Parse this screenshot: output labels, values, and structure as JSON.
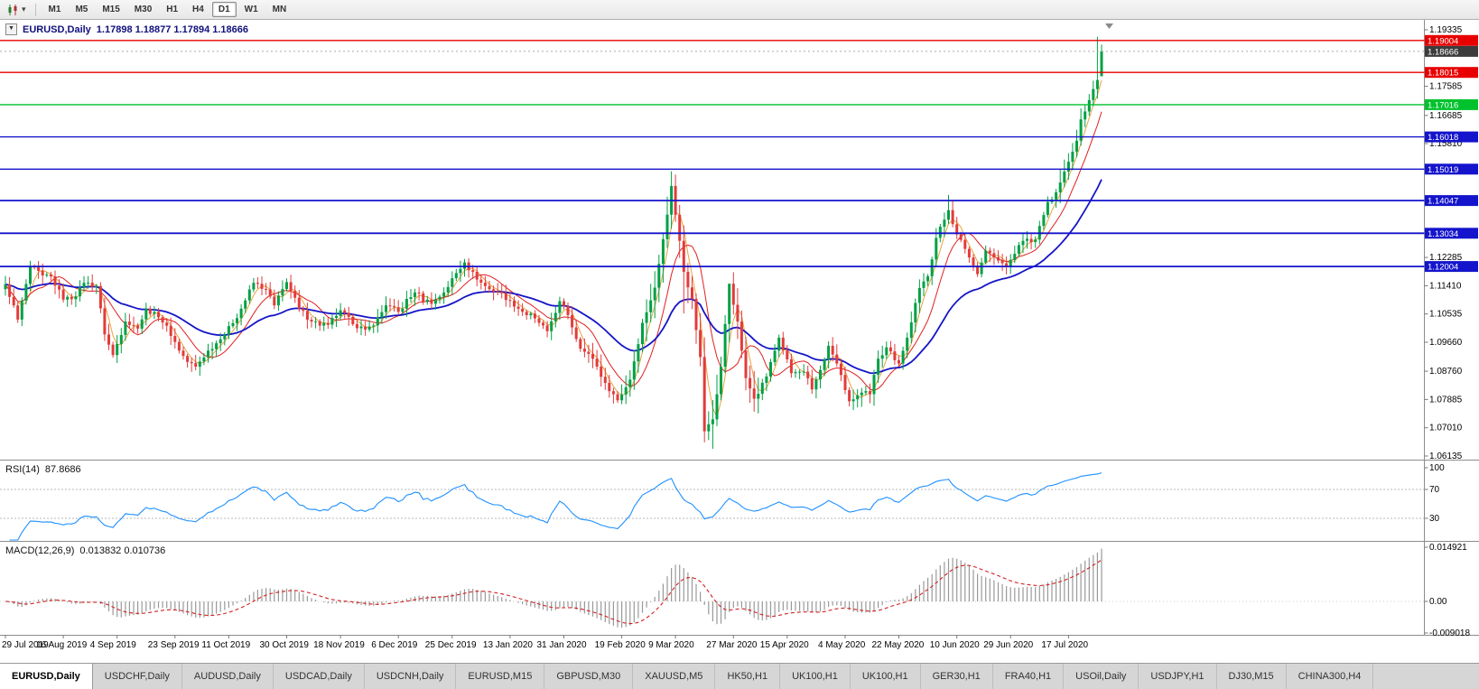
{
  "toolbar": {
    "timeframes": [
      {
        "label": "M1",
        "active": false
      },
      {
        "label": "M5",
        "active": false
      },
      {
        "label": "M15",
        "active": false
      },
      {
        "label": "M30",
        "active": false
      },
      {
        "label": "H1",
        "active": false
      },
      {
        "label": "H4",
        "active": false
      },
      {
        "label": "D1",
        "active": true
      },
      {
        "label": "W1",
        "active": false
      },
      {
        "label": "MN",
        "active": false
      }
    ]
  },
  "chart": {
    "title_symbol": "EURUSD,Daily",
    "ohlc_text": "1.17898 1.18877 1.17894 1.18666"
  },
  "indicators": {
    "rsi_label": "RSI(14)",
    "rsi_value": "87.8686",
    "macd_label": "MACD(12,26,9)",
    "macd_values": "0.013832 0.010736"
  },
  "chart_data": {
    "type": "candlestick",
    "symbol": "EURUSD",
    "timeframe": "Daily",
    "current_bar": {
      "open": 1.17898,
      "high": 1.18877,
      "low": 1.17894,
      "close": 1.18666
    },
    "bars": 266,
    "candle_up_color": "#00A045",
    "candle_down_color": "#E23B3B",
    "close_anchors": [
      [
        0,
        1.1145
      ],
      [
        2,
        1.108
      ],
      [
        3,
        1.1036
      ],
      [
        6,
        1.12
      ],
      [
        9,
        1.1173
      ],
      [
        11,
        1.117
      ],
      [
        14,
        1.1098
      ],
      [
        17,
        1.1108
      ],
      [
        19,
        1.115
      ],
      [
        22,
        1.114
      ],
      [
        24,
        1.099
      ],
      [
        26,
        1.0926
      ],
      [
        29,
        1.103
      ],
      [
        32,
        1.1008
      ],
      [
        34,
        1.107
      ],
      [
        37,
        1.1043
      ],
      [
        39,
        1.1017
      ],
      [
        42,
        1.094
      ],
      [
        44,
        1.0905
      ],
      [
        46,
        1.089
      ],
      [
        49,
        1.094
      ],
      [
        52,
        1.0975
      ],
      [
        55,
        1.1025
      ],
      [
        57,
        1.107
      ],
      [
        60,
        1.115
      ],
      [
        63,
        1.113
      ],
      [
        65,
        1.108
      ],
      [
        68,
        1.1152
      ],
      [
        71,
        1.107
      ],
      [
        74,
        1.103
      ],
      [
        78,
        1.102
      ],
      [
        81,
        1.1065
      ],
      [
        84,
        1.1022
      ],
      [
        87,
        1.1005
      ],
      [
        89,
        1.1018
      ],
      [
        92,
        1.108
      ],
      [
        95,
        1.106
      ],
      [
        99,
        1.112
      ],
      [
        103,
        1.1085
      ],
      [
        106,
        1.112
      ],
      [
        109,
        1.118
      ],
      [
        111,
        1.1213
      ],
      [
        114,
        1.116
      ],
      [
        117,
        1.113
      ],
      [
        119,
        1.1122
      ],
      [
        122,
        1.1095
      ],
      [
        125,
        1.106
      ],
      [
        129,
        1.1026
      ],
      [
        131,
        1.1
      ],
      [
        134,
        1.1093
      ],
      [
        136,
        1.105
      ],
      [
        139,
        1.0946
      ],
      [
        142,
        1.0915
      ],
      [
        145,
        1.084
      ],
      [
        148,
        1.0786
      ],
      [
        151,
        1.085
      ],
      [
        154,
        1.1026
      ],
      [
        157,
        1.1135
      ],
      [
        159,
        1.1285
      ],
      [
        161,
        1.145
      ],
      [
        163,
        1.128
      ],
      [
        164,
        1.1184
      ],
      [
        166,
        1.11
      ],
      [
        168,
        1.092
      ],
      [
        169,
        1.069
      ],
      [
        171,
        1.0727
      ],
      [
        173,
        1.089
      ],
      [
        175,
        1.1147
      ],
      [
        177,
        1.103
      ],
      [
        179,
        1.0855
      ],
      [
        181,
        1.0791
      ],
      [
        184,
        1.086
      ],
      [
        187,
        1.098
      ],
      [
        190,
        1.087
      ],
      [
        193,
        1.0875
      ],
      [
        195,
        1.082
      ],
      [
        197,
        1.088
      ],
      [
        199,
        1.0955
      ],
      [
        201,
        1.09
      ],
      [
        204,
        1.0783
      ],
      [
        207,
        1.081
      ],
      [
        209,
        1.0805
      ],
      [
        211,
        1.0915
      ],
      [
        213,
        1.095
      ],
      [
        216,
        1.09
      ],
      [
        218,
        1.098
      ],
      [
        221,
        1.1134
      ],
      [
        223,
        1.117
      ],
      [
        225,
        1.1289
      ],
      [
        228,
        1.1375
      ],
      [
        230,
        1.13
      ],
      [
        232,
        1.1255
      ],
      [
        235,
        1.1177
      ],
      [
        237,
        1.125
      ],
      [
        240,
        1.1219
      ],
      [
        242,
        1.12
      ],
      [
        244,
        1.124
      ],
      [
        246,
        1.128
      ],
      [
        249,
        1.1284
      ],
      [
        252,
        1.14
      ],
      [
        254,
        1.143
      ],
      [
        257,
        1.1525
      ],
      [
        259,
        1.159
      ],
      [
        260,
        1.1656
      ],
      [
        262,
        1.1716
      ],
      [
        263,
        1.175
      ],
      [
        264,
        1.1778
      ],
      [
        265,
        1.18666
      ]
    ],
    "wick_overrides": {
      "3": {
        "low": 1.1026
      },
      "26": {
        "low": 1.0918
      },
      "46": {
        "low": 1.0879
      },
      "148": {
        "low": 1.0778
      },
      "161": {
        "high": 1.1495
      },
      "164": {
        "low": 1.1055
      },
      "169": {
        "low": 1.0656
      },
      "171": {
        "low": 1.0636
      },
      "175": {
        "high": 1.1147
      },
      "204": {
        "low": 1.0767
      },
      "228": {
        "high": 1.1422
      },
      "264": {
        "high": 1.1912
      },
      "265": {
        "open": 1.17898,
        "high": 1.18877,
        "low": 1.17894
      }
    },
    "vol_zones": [
      [
        24,
        28,
        1.3
      ],
      [
        140,
        154,
        1.5
      ],
      [
        155,
        182,
        2.2
      ],
      [
        200,
        214,
        1.3
      ],
      [
        218,
        231,
        1.2
      ],
      [
        255,
        264,
        1.5
      ]
    ],
    "moving_averages": [
      {
        "name": "fast",
        "method": "sma",
        "period": 4,
        "color": "#E8A33D",
        "width": 1
      },
      {
        "name": "medium",
        "method": "sma",
        "period": 9,
        "color": "#E02020",
        "width": 1
      },
      {
        "name": "slow",
        "method": "ema",
        "period": 30,
        "color": "#1515C8",
        "width": 1.8
      }
    ],
    "h_lines": [
      {
        "price": 1.19004,
        "label": "1.19004",
        "color": "#E80000",
        "width": 1.4
      },
      {
        "price": 1.18015,
        "label": "1.18015",
        "color": "#E80000",
        "width": 1.4
      },
      {
        "price": 1.17016,
        "label": "1.17016",
        "color": "#00C22D",
        "width": 1.4
      },
      {
        "price": 1.16018,
        "label": "1.16018",
        "color": "#1414CC",
        "width": 1.4
      },
      {
        "price": 1.15019,
        "label": "1.15019",
        "color": "#1414CC",
        "width": 1.4
      },
      {
        "price": 1.14047,
        "label": "1.14047",
        "color": "#1414CC",
        "width": 1.8
      },
      {
        "price": 1.13034,
        "label": "1.13034",
        "color": "#1414CC",
        "width": 1.8
      },
      {
        "price": 1.12004,
        "label": "1.12004",
        "color": "#1414CC",
        "width": 1.8
      }
    ],
    "last_price": {
      "price": 1.18666,
      "label": "1.18666",
      "color": "#3C3C3C"
    },
    "y_axis": {
      "max": 1.19335,
      "min": 1.06135,
      "ticks": [
        "1.19335",
        "1.17585",
        "1.16685",
        "1.15810",
        "1.12285",
        "1.11410",
        "1.10535",
        "1.09660",
        "1.08760",
        "1.07885",
        "1.07010",
        "1.06135"
      ]
    },
    "x_labels": [
      {
        "i": 0,
        "label": "29 Jul 2019"
      },
      {
        "i": 14,
        "label": "16 Aug 2019"
      },
      {
        "i": 27,
        "label": "4 Sep 2019"
      },
      {
        "i": 41,
        "label": "23 Sep 2019"
      },
      {
        "i": 54,
        "label": "11 Oct 2019"
      },
      {
        "i": 68,
        "label": "30 Oct 2019"
      },
      {
        "i": 81,
        "label": "18 Nov 2019"
      },
      {
        "i": 95,
        "label": "6 Dec 2019"
      },
      {
        "i": 108,
        "label": "25 Dec 2019"
      },
      {
        "i": 122,
        "label": "13 Jan 2020"
      },
      {
        "i": 135,
        "label": "31 Jan 2020"
      },
      {
        "i": 149,
        "label": "19 Feb 2020"
      },
      {
        "i": 162,
        "label": "9 Mar 2020"
      },
      {
        "i": 176,
        "label": "27 Mar 2020"
      },
      {
        "i": 189,
        "label": "15 Apr 2020"
      },
      {
        "i": 203,
        "label": "4 May 2020"
      },
      {
        "i": 216,
        "label": "22 May 2020"
      },
      {
        "i": 230,
        "label": "10 Jun 2020"
      },
      {
        "i": 243,
        "label": "29 Jun 2020"
      },
      {
        "i": 257,
        "label": "17 Jul 2020"
      }
    ],
    "rsi": {
      "period": 14,
      "color": "#1E90FF",
      "levels": [
        "100",
        "70",
        "30"
      ],
      "level_values": [
        100,
        70,
        30
      ],
      "value": 87.8686
    },
    "macd": {
      "fast": 12,
      "slow": 26,
      "signal": 9,
      "main": 0.013832,
      "signal_value": 0.010736,
      "histogram_color": "#999999",
      "signal_color": "#D22020",
      "axis": [
        "0.014921",
        "0.00",
        "-0.009018"
      ],
      "axis_values": [
        0.014921,
        0,
        -0.009018
      ]
    }
  },
  "tabs": [
    {
      "label": "EURUSD,Daily",
      "active": true
    },
    {
      "label": "USDCHF,Daily",
      "active": false
    },
    {
      "label": "AUDUSD,Daily",
      "active": false
    },
    {
      "label": "USDCAD,Daily",
      "active": false
    },
    {
      "label": "USDCNH,Daily",
      "active": false
    },
    {
      "label": "EURUSD,M15",
      "active": false
    },
    {
      "label": "GBPUSD,M30",
      "active": false
    },
    {
      "label": "XAUUSD,M5",
      "active": false
    },
    {
      "label": "HK50,H1",
      "active": false
    },
    {
      "label": "UK100,H1",
      "active": false
    },
    {
      "label": "UK100,H1",
      "active": false
    },
    {
      "label": "GER30,H1",
      "active": false
    },
    {
      "label": "FRA40,H1",
      "active": false
    },
    {
      "label": "USOil,Daily",
      "active": false
    },
    {
      "label": "USDJPY,H1",
      "active": false
    },
    {
      "label": "DJ30,M15",
      "active": false
    },
    {
      "label": "CHINA300,H4",
      "active": false
    }
  ]
}
